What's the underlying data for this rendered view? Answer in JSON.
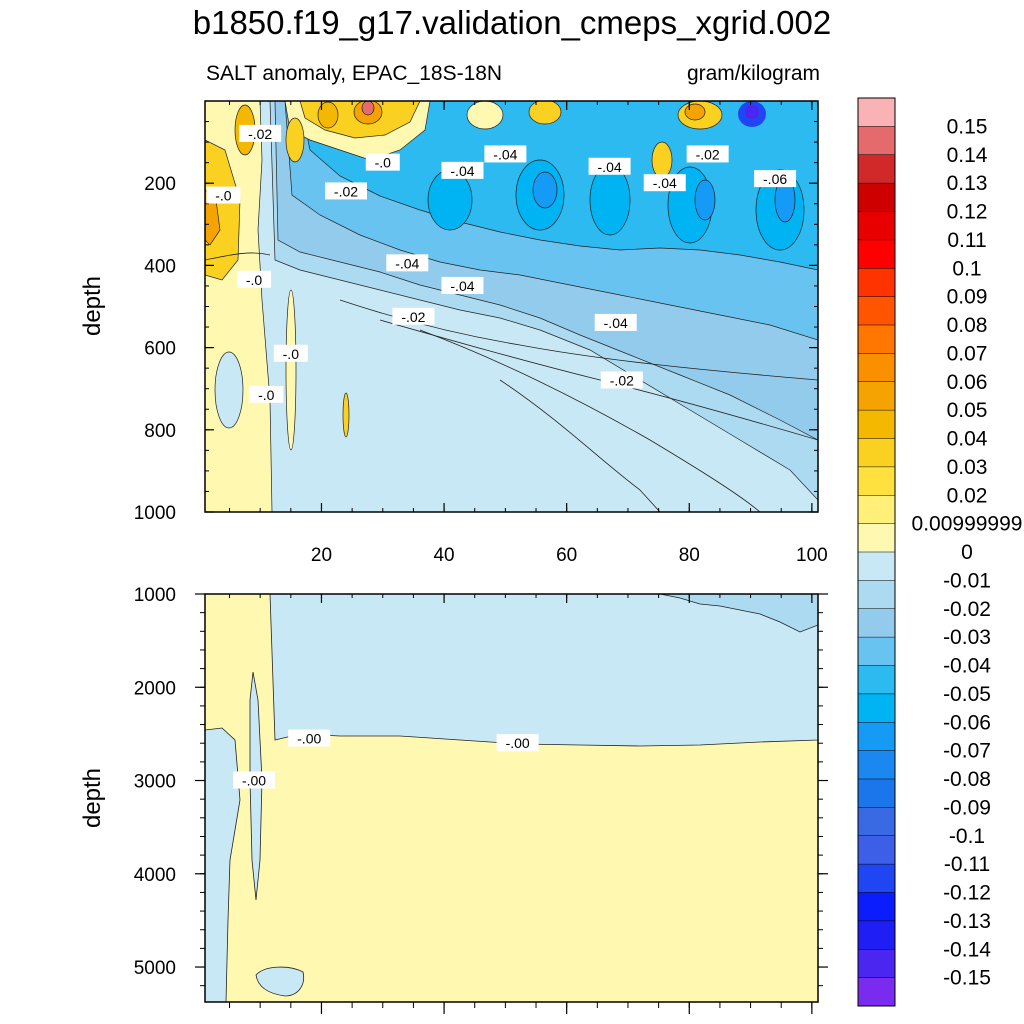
{
  "main_title": "b1850.f19_g17.validation_cmeps_xgrid.002",
  "subtitle_left": "SALT anomaly, EPAC_18S-18N",
  "subtitle_right": "gram/kilogram",
  "chart_data": [
    {
      "type": "heatmap",
      "panel": "upper",
      "ylabel": "depth",
      "xticks": [
        "20",
        "40",
        "60",
        "80",
        "100"
      ],
      "yticks": [
        "200",
        "400",
        "600",
        "800",
        "1000"
      ],
      "xlim": [
        1,
        101
      ],
      "ylim": [
        0,
        1000
      ],
      "y_reversed": true,
      "contour_labels": [
        {
          "text": "-.02",
          "x": 10,
          "y": 80
        },
        {
          "text": "-.0",
          "x": 4,
          "y": 230
        },
        {
          "text": "-.0",
          "x": 30,
          "y": 150
        },
        {
          "text": "-.02",
          "x": 24,
          "y": 220
        },
        {
          "text": "-.04",
          "x": 43,
          "y": 170
        },
        {
          "text": "-.04",
          "x": 50,
          "y": 130
        },
        {
          "text": "-.04",
          "x": 67,
          "y": 160
        },
        {
          "text": "-.04",
          "x": 76,
          "y": 200
        },
        {
          "text": "-.02",
          "x": 83,
          "y": 130
        },
        {
          "text": "-.06",
          "x": 94,
          "y": 190
        },
        {
          "text": "-.04",
          "x": 34,
          "y": 395
        },
        {
          "text": "-.04",
          "x": 43,
          "y": 450
        },
        {
          "text": "-.0",
          "x": 9,
          "y": 435
        },
        {
          "text": "-.02",
          "x": 35,
          "y": 525
        },
        {
          "text": "-.04",
          "x": 68,
          "y": 540
        },
        {
          "text": "-.0",
          "x": 15,
          "y": 615
        },
        {
          "text": "-.0",
          "x": 11,
          "y": 715
        },
        {
          "text": "-.02",
          "x": 69,
          "y": 680
        }
      ]
    },
    {
      "type": "heatmap",
      "panel": "lower",
      "ylabel": "depth",
      "yticks": [
        "1000",
        "2000",
        "3000",
        "4000",
        "5000"
      ],
      "xlim": [
        1,
        101
      ],
      "ylim": [
        1000,
        5375
      ],
      "y_reversed": true,
      "contour_labels": [
        {
          "text": "-.00",
          "x": 18,
          "y": 2550
        },
        {
          "text": "-.00",
          "x": 52,
          "y": 2600
        },
        {
          "text": "-.00",
          "x": 9,
          "y": 3000
        }
      ]
    }
  ],
  "colorbar": {
    "labels": [
      "0.15",
      "0.14",
      "0.13",
      "0.12",
      "0.11",
      "0.1",
      "0.09",
      "0.08",
      "0.07",
      "0.06",
      "0.05",
      "0.04",
      "0.03",
      "0.02",
      "0.00999999",
      "0",
      "-0.01",
      "-0.02",
      "-0.03",
      "-0.04",
      "-0.05",
      "-0.06",
      "-0.07",
      "-0.08",
      "-0.09",
      "-0.1",
      "-0.11",
      "-0.12",
      "-0.13",
      "-0.14",
      "-0.15"
    ],
    "colors": [
      "#f9b3b5",
      "#e56a6c",
      "#d12929",
      "#cf0000",
      "#e80000",
      "#ff0000",
      "#ff3300",
      "#ff5500",
      "#ff7700",
      "#fa8f00",
      "#f5a300",
      "#f5b800",
      "#fad021",
      "#fee13e",
      "#fff07a",
      "#fff8b1",
      "#c8e8f5",
      "#acdaf0",
      "#93cbed",
      "#69c3f1",
      "#2cbaf0",
      "#00b3f3",
      "#159bf5",
      "#1b87f0",
      "#1b75eb",
      "#3a6ae3",
      "#3d5ee6",
      "#2046f3",
      "#0b1dfc",
      "#1f1ef5",
      "#4b25f0",
      "#7a2bf0"
    ]
  }
}
